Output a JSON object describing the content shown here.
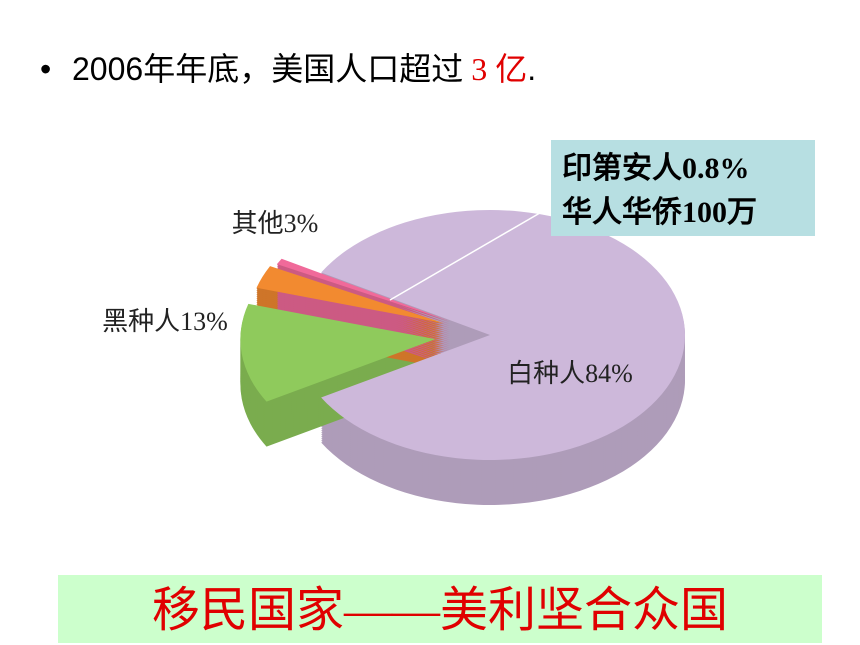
{
  "slide": {
    "bullet": [
      "2006年年底，美国人口超过",
      "3 亿",
      "."
    ],
    "banner": "移民国家——美利坚合众国"
  },
  "chart_data": {
    "type": "pie",
    "categories": [
      "白种人",
      "黑种人",
      "其他",
      "印第安人"
    ],
    "values": [
      84,
      13,
      3,
      0.8
    ],
    "value_labels": [
      "84%",
      "13%",
      "3%",
      "0.8%"
    ],
    "colors": [
      "#cdb8da",
      "#8fca5c",
      "#f28a30",
      "#f06a9a"
    ],
    "annotation": "华人华侨100万"
  }
}
